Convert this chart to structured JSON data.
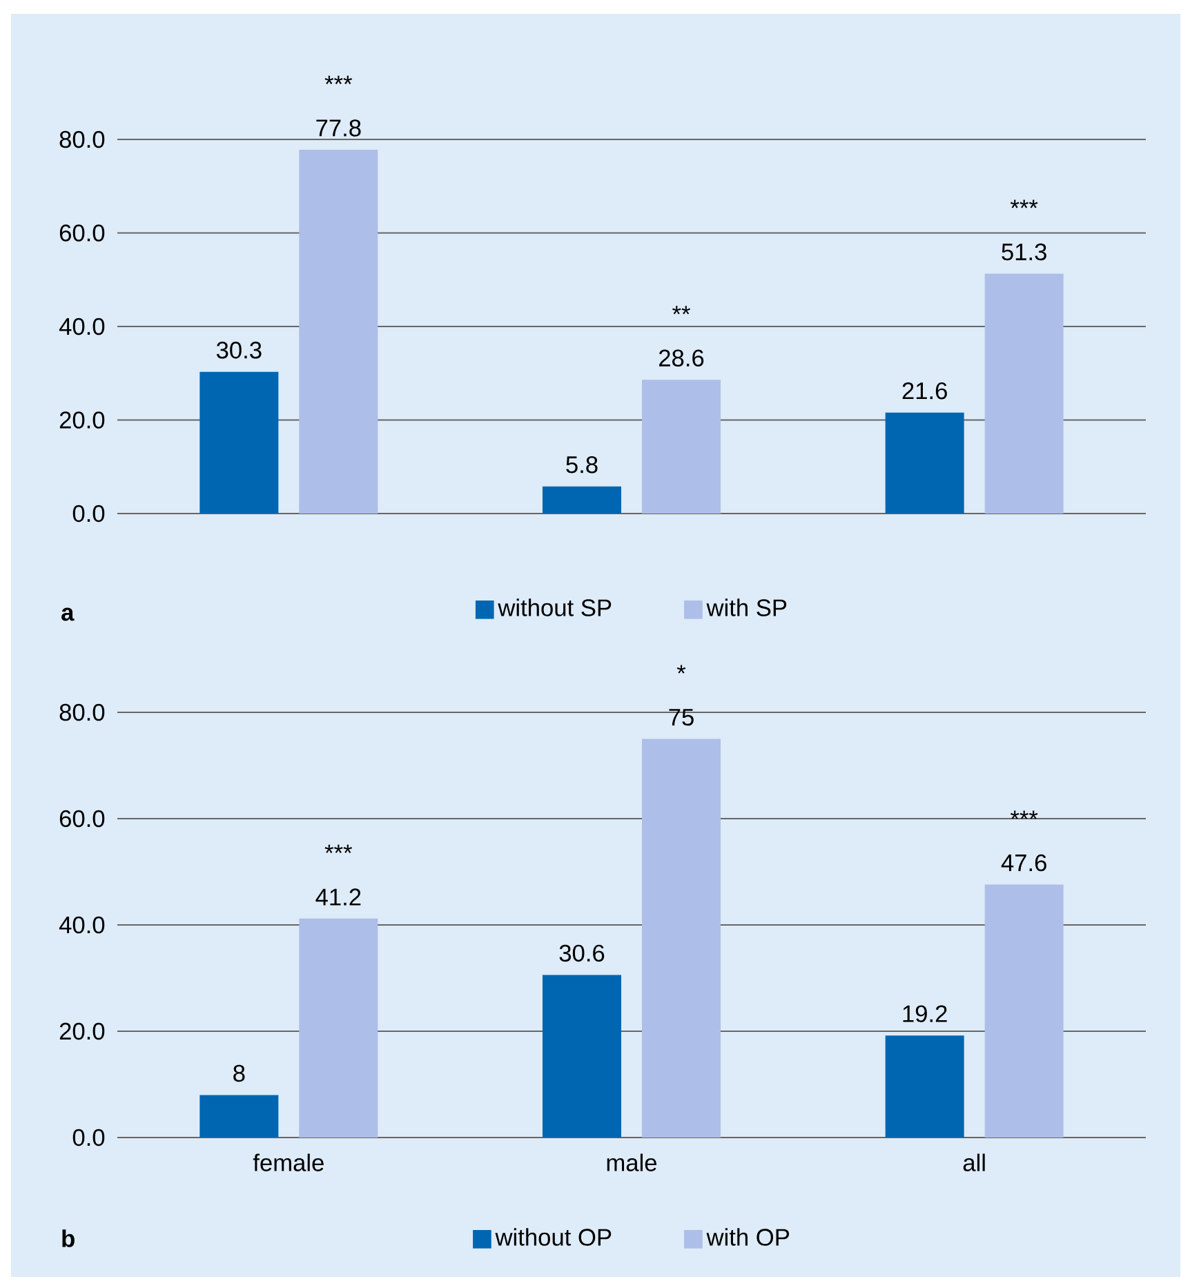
{
  "chart_data": [
    {
      "type": "bar",
      "title": "a",
      "categories": [
        null,
        null,
        null
      ],
      "series": [
        {
          "name": "without SP",
          "color": "#0066b1",
          "values": [
            30.3,
            5.8,
            21.6
          ]
        },
        {
          "name": "with SP",
          "color": "#adbee8",
          "values": [
            77.8,
            28.6,
            51.3
          ]
        }
      ],
      "ylim": [
        0,
        80
      ],
      "yticks": [
        {
          "value": 0,
          "label": "0.0"
        },
        {
          "value": 20,
          "label": "20.0"
        },
        {
          "value": 40,
          "label": "40.0"
        },
        {
          "value": 60,
          "label": "60.0"
        },
        {
          "value": 80,
          "label": "80.0"
        }
      ],
      "grid": "y",
      "legend": "bottom",
      "data_labels": true,
      "annotations": [
        "***",
        "**",
        "***"
      ]
    },
    {
      "type": "bar",
      "title": "b",
      "categories": [
        "female",
        "male",
        "all"
      ],
      "series": [
        {
          "name": "without OP",
          "color": "#0066b1",
          "values": [
            8,
            30.6,
            19.2
          ]
        },
        {
          "name": "with OP",
          "color": "#adbee8",
          "values": [
            41.2,
            75,
            47.6
          ]
        }
      ],
      "ylim": [
        0,
        80
      ],
      "yticks": [
        {
          "value": 0,
          "label": "0.0"
        },
        {
          "value": 20,
          "label": "20.0"
        },
        {
          "value": 40,
          "label": "40.0"
        },
        {
          "value": 60,
          "label": "60.0"
        },
        {
          "value": 80,
          "label": "80.0"
        }
      ],
      "grid": "y",
      "legend": "bottom",
      "data_labels": true,
      "annotations": [
        "***",
        "*",
        "***"
      ]
    }
  ]
}
